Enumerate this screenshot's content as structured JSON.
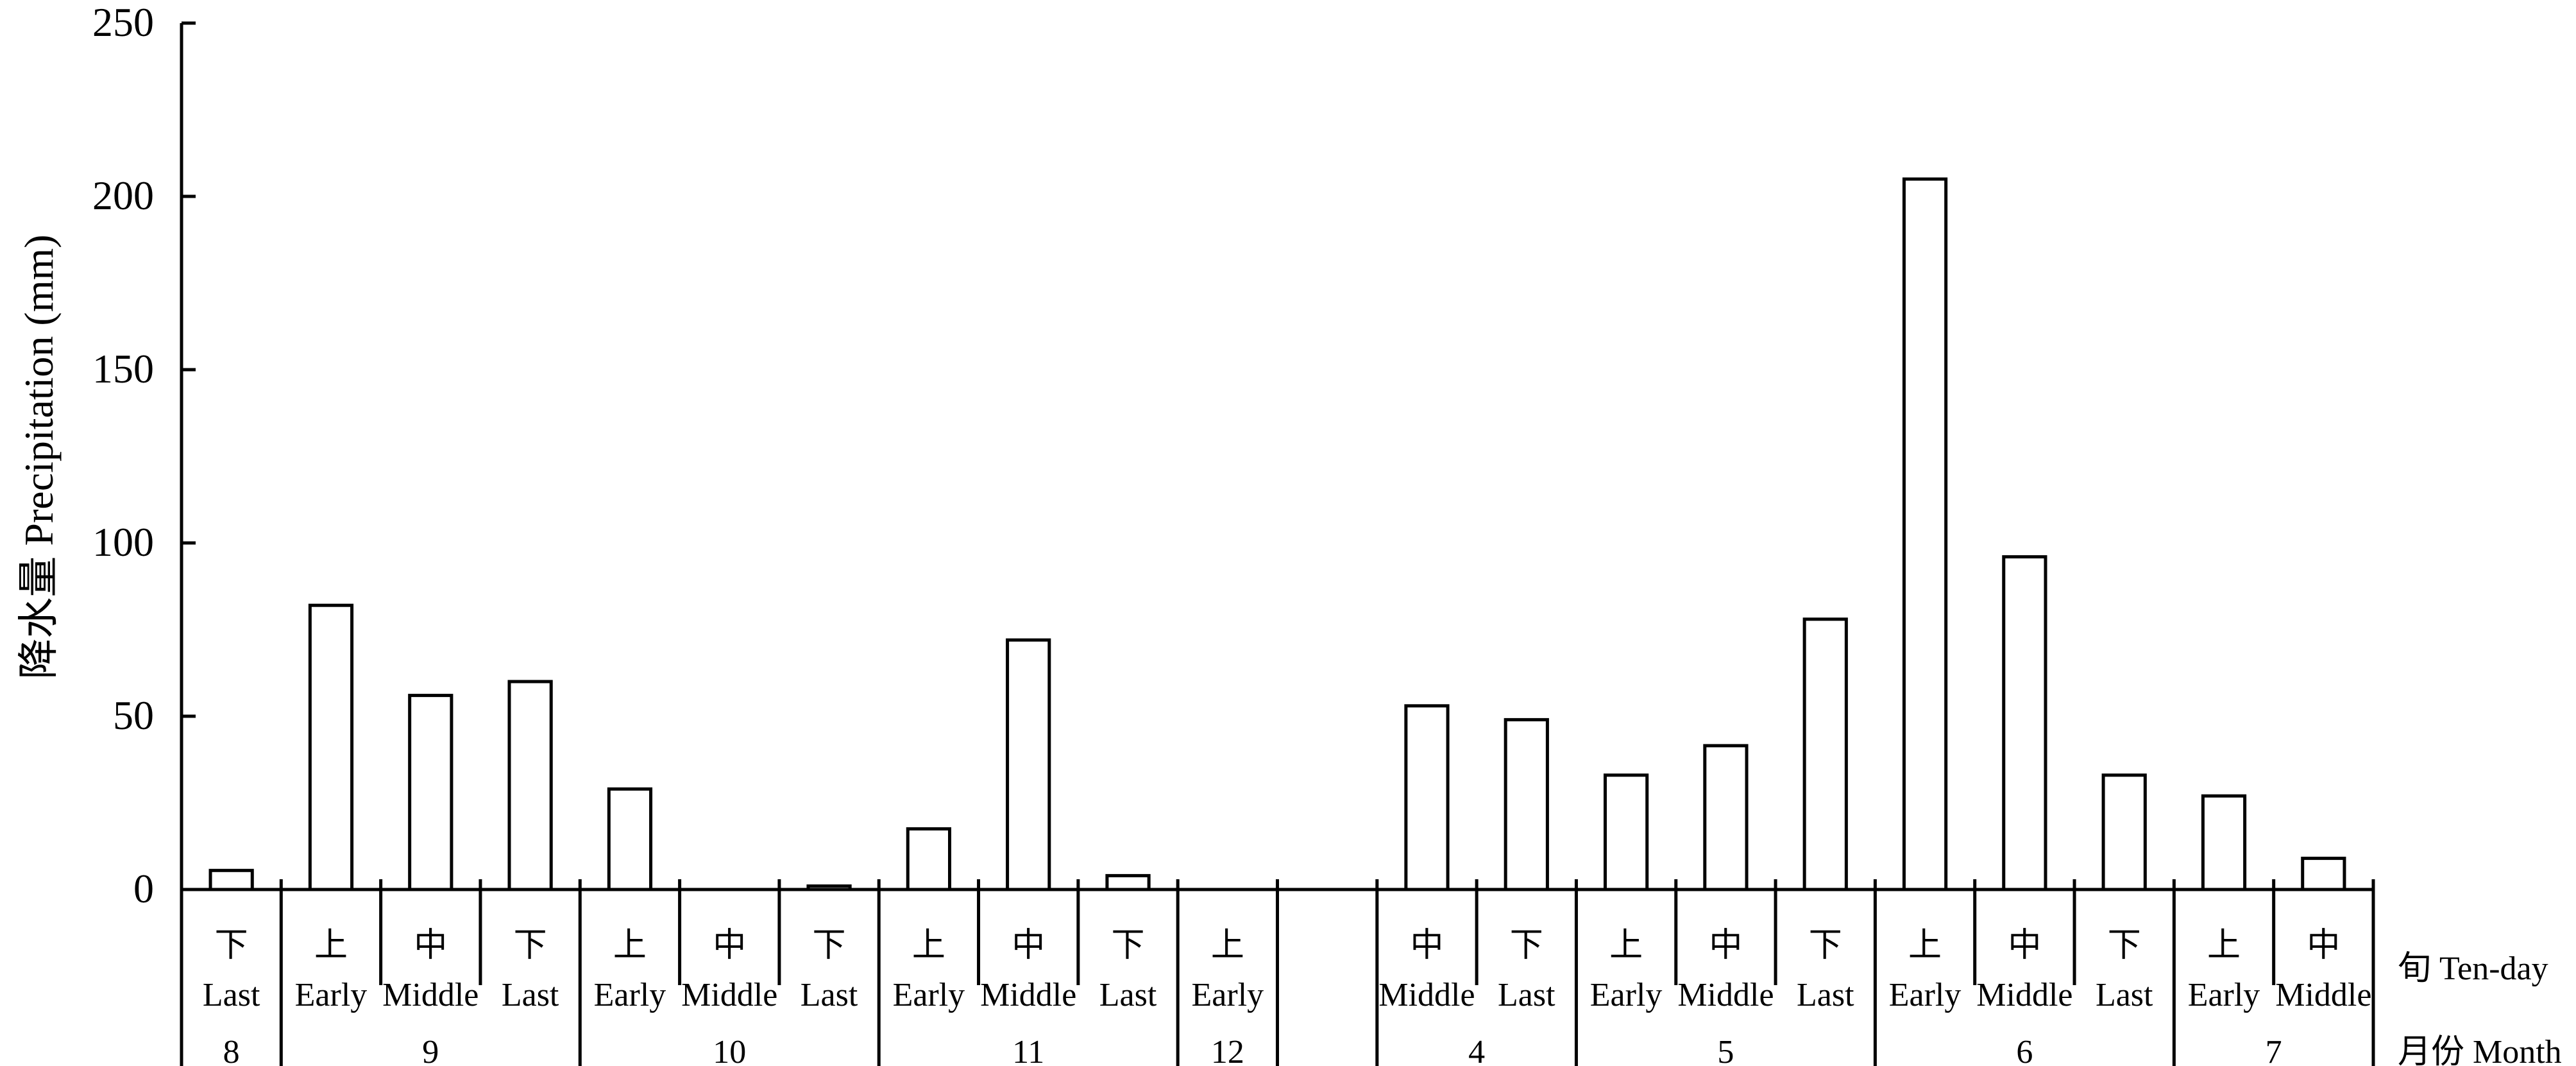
{
  "chart_data": {
    "type": "bar",
    "ylabel": "降水量 Precipitation (mm)",
    "ylim": [
      0,
      250
    ],
    "yticks": [
      0,
      50,
      100,
      150,
      200,
      250
    ],
    "grid": false,
    "legend": "none",
    "ten_day_axis_label": "旬 Ten-day",
    "month_axis_label": "月份 Month",
    "ten_day_labels": [
      {
        "cn": "下",
        "en": "Last"
      },
      {
        "cn": "上",
        "en": "Early"
      },
      {
        "cn": "中",
        "en": "Middle"
      },
      {
        "cn": "下",
        "en": "Last"
      },
      {
        "cn": "上",
        "en": "Early"
      },
      {
        "cn": "中",
        "en": "Middle"
      },
      {
        "cn": "下",
        "en": "Last"
      },
      {
        "cn": "上",
        "en": "Early"
      },
      {
        "cn": "中",
        "en": "Middle"
      },
      {
        "cn": "下",
        "en": "Last"
      },
      {
        "cn": "上",
        "en": "Early"
      },
      {
        "cn": "",
        "en": ""
      },
      {
        "cn": "中",
        "en": "Middle"
      },
      {
        "cn": "下",
        "en": "Last"
      },
      {
        "cn": "上",
        "en": "Early"
      },
      {
        "cn": "中",
        "en": "Middle"
      },
      {
        "cn": "下",
        "en": "Last"
      },
      {
        "cn": "上",
        "en": "Early"
      },
      {
        "cn": "中",
        "en": "Middle"
      },
      {
        "cn": "下",
        "en": "Last"
      },
      {
        "cn": "上",
        "en": "Early"
      },
      {
        "cn": "中",
        "en": "Middle"
      }
    ],
    "values": [
      5.5,
      82,
      56,
      60,
      29,
      0,
      1,
      17.5,
      72,
      4,
      0,
      null,
      53,
      49,
      33,
      41.5,
      78,
      205,
      96,
      33,
      27,
      9
    ],
    "months": [
      {
        "label": "8",
        "span": 1
      },
      {
        "label": "9",
        "span": 3
      },
      {
        "label": "10",
        "span": 3
      },
      {
        "label": "11",
        "span": 3
      },
      {
        "label": "12",
        "span": 1
      },
      {
        "label": "",
        "span": 1
      },
      {
        "label": "4",
        "span": 2
      },
      {
        "label": "5",
        "span": 3
      },
      {
        "label": "6",
        "span": 3
      },
      {
        "label": "7",
        "span": 2
      }
    ]
  }
}
